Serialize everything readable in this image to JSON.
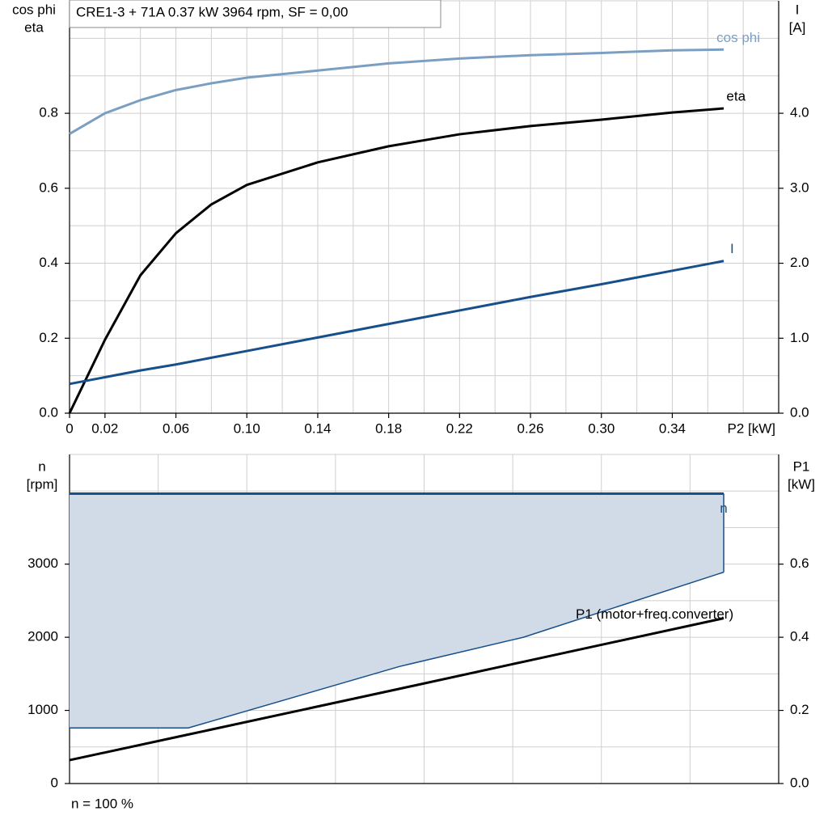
{
  "chart_data": [
    {
      "type": "line",
      "title": "CRE1-3 + 71A   0.37 kW   3964 rpm, SF = 0,00",
      "ylabel": [
        "cos phi",
        "eta"
      ],
      "y2label": [
        "I",
        "[A]"
      ],
      "xlabel": "P2 [kW]",
      "x": [
        0,
        0.02,
        0.04,
        0.06,
        0.08,
        0.1,
        0.14,
        0.18,
        0.22,
        0.26,
        0.3,
        0.34,
        0.369
      ],
      "series": [
        {
          "name": "cos phi",
          "color": "#7b9fc2",
          "values": [
            0.745,
            0.8,
            0.835,
            0.862,
            0.88,
            0.895,
            0.914,
            0.933,
            0.946,
            0.955,
            0.961,
            0.968,
            0.97
          ]
        },
        {
          "name": "eta",
          "color": "#000000",
          "values": [
            0,
            0.196,
            0.368,
            0.48,
            0.557,
            0.609,
            0.669,
            0.712,
            0.744,
            0.766,
            0.783,
            0.802,
            0.813
          ]
        },
        {
          "name": "I",
          "color": "#174f8a",
          "axis": "y2",
          "values": [
            0.39,
            0.48,
            0.57,
            0.65,
            0.74,
            0.83,
            1.01,
            1.19,
            1.37,
            1.55,
            1.72,
            1.9,
            2.03
          ]
        }
      ],
      "xlim": [
        0,
        0.4
      ],
      "xticks": [
        0,
        0.02,
        0.06,
        {
          "value": 0.1,
          "label": "0.10"
        },
        0.14,
        0.18,
        0.22,
        0.26,
        {
          "value": 0.3,
          "label": "0.30"
        },
        0.34
      ],
      "ylim": [
        0,
        1.1
      ],
      "yticks": [
        {
          "value": 0,
          "label": "0.0"
        },
        0.2,
        0.4,
        0.6,
        0.8
      ],
      "y2lim": [
        0,
        5.5
      ],
      "y2ticks": [
        {
          "value": 0,
          "label": "0.0"
        },
        {
          "value": 1,
          "label": "1.0"
        },
        {
          "value": 2,
          "label": "2.0"
        },
        {
          "value": 3,
          "label": "3.0"
        },
        {
          "value": 4,
          "label": "4.0"
        }
      ],
      "grid": true
    },
    {
      "type": "area",
      "ylabel": [
        "n",
        "[rpm]"
      ],
      "y2label": [
        "P1",
        "[kW]"
      ],
      "annotation": "n = 100 %",
      "x": [
        0,
        0.067,
        0.186,
        0.256,
        0.369
      ],
      "series": [
        {
          "name": "n",
          "color": "#174f8a",
          "fill": "#d0dbe7",
          "values": [
            3964,
            3964,
            3964,
            3964,
            3964
          ],
          "lower": [
            760,
            760,
            1600,
            2000,
            2890
          ]
        },
        {
          "name": "P1 (motor+freq.converter)",
          "color": "#000000",
          "axis": "y2",
          "values": [
            0.064,
            0.134,
            0.259,
            0.333,
            0.452
          ]
        }
      ],
      "xlim": [
        0,
        0.4
      ],
      "ylim": [
        0,
        4500
      ],
      "yticks": [
        0,
        1000,
        2000,
        3000
      ],
      "y2lim": [
        0,
        0.9
      ],
      "y2ticks": [
        {
          "value": 0,
          "label": "0.0"
        },
        0.2,
        0.4,
        0.6
      ],
      "grid": true
    }
  ]
}
